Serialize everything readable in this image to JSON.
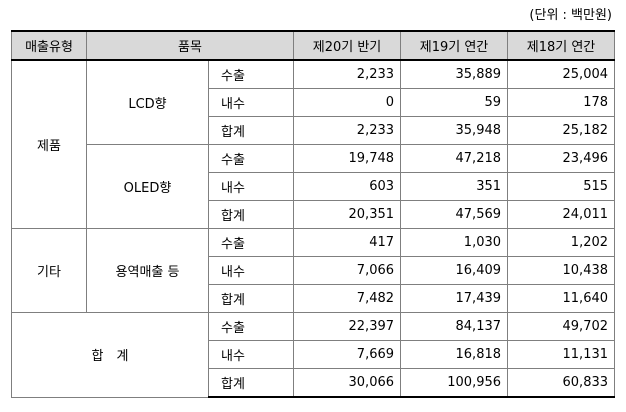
{
  "unit_note": "(단위 : 백만원)",
  "headers": [
    "매출유형",
    "품목",
    "제20기 반기",
    "제19기 연간",
    "제18기 연간"
  ],
  "groups": [
    {
      "type": "제품",
      "items": [
        {
          "name": "LCD향",
          "rows": [
            {
              "label": "수출",
              "v": [
                "2,233",
                "35,889",
                "25,004"
              ]
            },
            {
              "label": "내수",
              "v": [
                "0",
                "59",
                "178"
              ]
            },
            {
              "label": "합계",
              "v": [
                "2,233",
                "35,948",
                "25,182"
              ]
            }
          ]
        },
        {
          "name": "OLED향",
          "rows": [
            {
              "label": "수출",
              "v": [
                "19,748",
                "47,218",
                "23,496"
              ]
            },
            {
              "label": "내수",
              "v": [
                "603",
                "351",
                "515"
              ]
            },
            {
              "label": "합계",
              "v": [
                "20,351",
                "47,569",
                "24,011"
              ]
            }
          ]
        }
      ]
    },
    {
      "type": "기타",
      "items": [
        {
          "name": "용역매출 등",
          "rows": [
            {
              "label": "수출",
              "v": [
                "417",
                "1,030",
                "1,202"
              ]
            },
            {
              "label": "내수",
              "v": [
                "7,066",
                "16,409",
                "10,438"
              ]
            },
            {
              "label": "합계",
              "v": [
                "7,482",
                "17,439",
                "11,640"
              ]
            }
          ]
        }
      ]
    }
  ],
  "total": {
    "label": "합　계",
    "rows": [
      {
        "label": "수출",
        "v": [
          "22,397",
          "84,137",
          "49,702"
        ]
      },
      {
        "label": "내수",
        "v": [
          "7,669",
          "16,818",
          "11,131"
        ]
      },
      {
        "label": "합계",
        "v": [
          "30,066",
          "100,956",
          "60,833"
        ]
      }
    ]
  }
}
